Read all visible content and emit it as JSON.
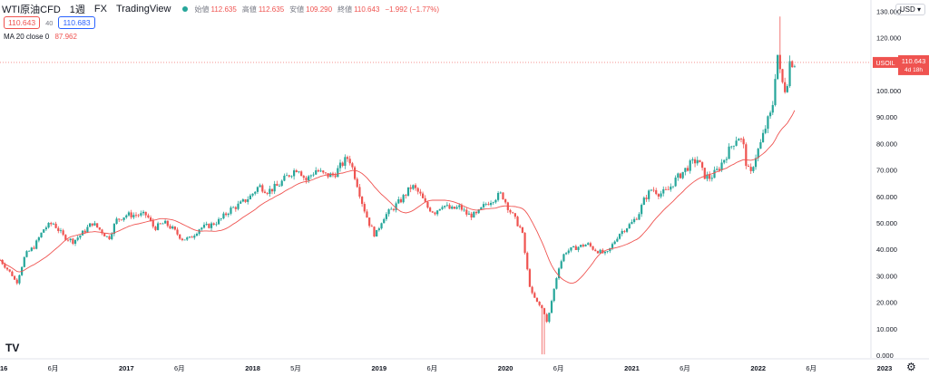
{
  "header": {
    "symbol": "WTI原油CFD",
    "interval": "1週",
    "exchange": "FX",
    "source": "TradingView",
    "open_label": "始値",
    "open": "112.635",
    "high_label": "高値",
    "high": "112.635",
    "low_label": "安値",
    "low": "109.290",
    "close_label": "終値",
    "close": "110.643",
    "change": "−1.992 (−1.77%)",
    "sell_price": "110.643",
    "spread": "40",
    "buy_price": "110.683",
    "ma_label": "MA 20 close 0",
    "ma_value": "87.962",
    "currency": "USD"
  },
  "price_tag": {
    "symbol": "USOIL",
    "price": "110.643",
    "countdown": "4d 18h"
  },
  "colors": {
    "up": "#26a69a",
    "down": "#ef5350",
    "ma": "#ef5350",
    "grid": "#f0f3fa"
  },
  "icons": {
    "logo": "tradingview-logo-icon",
    "settings": "gear-icon"
  },
  "logo_text": "TV",
  "gear_glyph": "⚙",
  "chart_data": {
    "type": "candlestick",
    "ylim": [
      0,
      130
    ],
    "y_ticks": [
      "0.000",
      "10.000",
      "20.000",
      "30.000",
      "40.000",
      "50.000",
      "60.000",
      "70.000",
      "80.000",
      "90.000",
      "100.000",
      "110.000",
      "120.000",
      "130.000"
    ],
    "x_ticks": [
      {
        "label": "2016",
        "t": 2016.0
      },
      {
        "label": "6月",
        "t": 2016.42
      },
      {
        "label": "2017",
        "t": 2017.0
      },
      {
        "label": "6月",
        "t": 2017.42
      },
      {
        "label": "2018",
        "t": 2018.0
      },
      {
        "label": "5月",
        "t": 2018.34
      },
      {
        "label": "2019",
        "t": 2019.0
      },
      {
        "label": "6月",
        "t": 2019.42
      },
      {
        "label": "2020",
        "t": 2020.0
      },
      {
        "label": "6月",
        "t": 2020.42
      },
      {
        "label": "2021",
        "t": 2021.0
      },
      {
        "label": "6月",
        "t": 2021.42
      },
      {
        "label": "2022",
        "t": 2022.0
      },
      {
        "label": "6月",
        "t": 2022.42
      },
      {
        "label": "2023",
        "t": 2023.0
      }
    ],
    "xlim": [
      2016.0,
      2023.0
    ],
    "close_path": [
      [
        2016.0,
        36
      ],
      [
        2016.05,
        33
      ],
      [
        2016.1,
        30
      ],
      [
        2016.13,
        27
      ],
      [
        2016.2,
        38
      ],
      [
        2016.27,
        41
      ],
      [
        2016.35,
        48
      ],
      [
        2016.42,
        50
      ],
      [
        2016.5,
        45
      ],
      [
        2016.58,
        43
      ],
      [
        2016.65,
        46
      ],
      [
        2016.73,
        50
      ],
      [
        2016.8,
        47
      ],
      [
        2016.86,
        44
      ],
      [
        2016.92,
        51
      ],
      [
        2017.0,
        53
      ],
      [
        2017.08,
        53
      ],
      [
        2017.16,
        53
      ],
      [
        2017.22,
        48
      ],
      [
        2017.3,
        50
      ],
      [
        2017.36,
        48
      ],
      [
        2017.44,
        44
      ],
      [
        2017.5,
        44
      ],
      [
        2017.58,
        48
      ],
      [
        2017.66,
        49
      ],
      [
        2017.74,
        51
      ],
      [
        2017.82,
        55
      ],
      [
        2017.9,
        57
      ],
      [
        2017.98,
        60
      ],
      [
        2018.05,
        64
      ],
      [
        2018.12,
        62
      ],
      [
        2018.2,
        64
      ],
      [
        2018.28,
        68
      ],
      [
        2018.36,
        71
      ],
      [
        2018.42,
        66
      ],
      [
        2018.5,
        70
      ],
      [
        2018.57,
        68
      ],
      [
        2018.64,
        68
      ],
      [
        2018.72,
        73
      ],
      [
        2018.76,
        75
      ],
      [
        2018.82,
        66
      ],
      [
        2018.87,
        57
      ],
      [
        2018.92,
        50
      ],
      [
        2018.97,
        45
      ],
      [
        2019.03,
        52
      ],
      [
        2019.1,
        55
      ],
      [
        2019.18,
        59
      ],
      [
        2019.26,
        64
      ],
      [
        2019.32,
        61
      ],
      [
        2019.38,
        56
      ],
      [
        2019.44,
        54
      ],
      [
        2019.5,
        57
      ],
      [
        2019.57,
        55
      ],
      [
        2019.64,
        56
      ],
      [
        2019.7,
        53
      ],
      [
        2019.77,
        53
      ],
      [
        2019.84,
        57
      ],
      [
        2019.9,
        59
      ],
      [
        2019.97,
        61
      ],
      [
        2020.03,
        55
      ],
      [
        2020.08,
        51
      ],
      [
        2020.13,
        47
      ],
      [
        2020.17,
        33
      ],
      [
        2020.2,
        24
      ],
      [
        2020.25,
        20
      ],
      [
        2020.3,
        17
      ],
      [
        2020.33,
        12
      ],
      [
        2020.38,
        24
      ],
      [
        2020.42,
        33
      ],
      [
        2020.47,
        39
      ],
      [
        2020.52,
        40
      ],
      [
        2020.58,
        41
      ],
      [
        2020.65,
        42
      ],
      [
        2020.7,
        40
      ],
      [
        2020.75,
        39
      ],
      [
        2020.8,
        38
      ],
      [
        2020.85,
        42
      ],
      [
        2020.9,
        46
      ],
      [
        2020.95,
        48
      ],
      [
        2021.0,
        50
      ],
      [
        2021.05,
        53
      ],
      [
        2021.1,
        59
      ],
      [
        2021.16,
        63
      ],
      [
        2021.22,
        61
      ],
      [
        2021.28,
        62
      ],
      [
        2021.34,
        66
      ],
      [
        2021.4,
        69
      ],
      [
        2021.46,
        72
      ],
      [
        2021.52,
        74
      ],
      [
        2021.57,
        68
      ],
      [
        2021.62,
        67
      ],
      [
        2021.68,
        70
      ],
      [
        2021.74,
        75
      ],
      [
        2021.8,
        80
      ],
      [
        2021.84,
        83
      ],
      [
        2021.88,
        80
      ],
      [
        2021.91,
        71
      ],
      [
        2021.94,
        68
      ],
      [
        2021.97,
        74
      ],
      [
        2022.02,
        80
      ],
      [
        2022.07,
        88
      ],
      [
        2022.11,
        92
      ],
      [
        2022.15,
        115
      ],
      [
        2022.18,
        104
      ],
      [
        2022.22,
        100
      ],
      [
        2022.25,
        111
      ],
      [
        2022.29,
        110.643
      ]
    ]
  }
}
